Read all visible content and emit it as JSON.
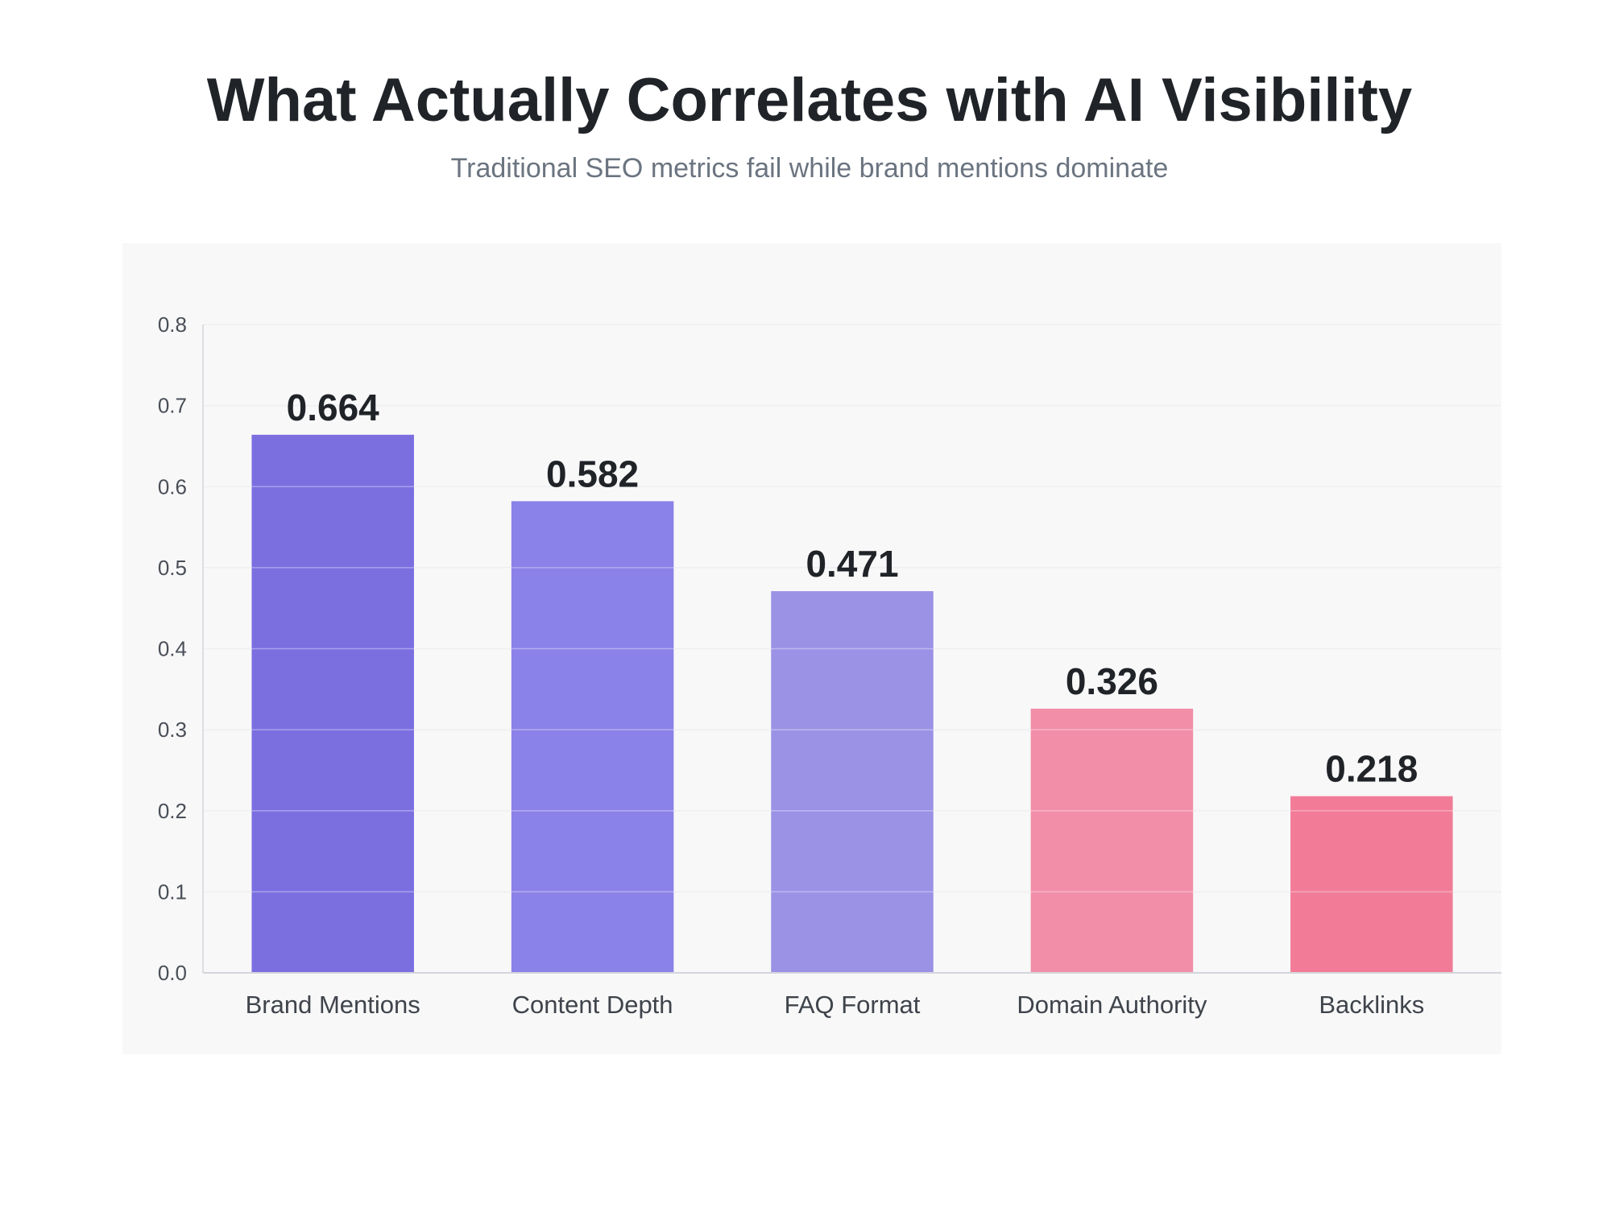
{
  "chart_data": {
    "type": "bar",
    "title": "What Actually Correlates with AI Visibility",
    "subtitle": "Traditional SEO metrics fail while brand mentions dominate",
    "categories": [
      "Brand Mentions",
      "Content Depth",
      "FAQ Format",
      "Domain Authority",
      "Backlinks"
    ],
    "values": [
      0.664,
      0.582,
      0.471,
      0.326,
      0.218
    ],
    "value_labels": [
      "0.664",
      "0.582",
      "0.471",
      "0.326",
      "0.218"
    ],
    "bar_colors": [
      "#7b6fe0",
      "#8a82e8",
      "#9b92e6",
      "#f28ea8",
      "#f27c98"
    ],
    "xlabel": "",
    "ylabel": "",
    "ylim": [
      0,
      0.8
    ],
    "yticks": [
      "0.0",
      "0.1",
      "0.2",
      "0.3",
      "0.4",
      "0.5",
      "0.6",
      "0.7",
      "0.8"
    ],
    "grid": true,
    "legend": "none"
  },
  "colors": {
    "panel_background": "#f8f8f9",
    "grid": "#e9e9ec",
    "axis": "#d3d5da"
  }
}
